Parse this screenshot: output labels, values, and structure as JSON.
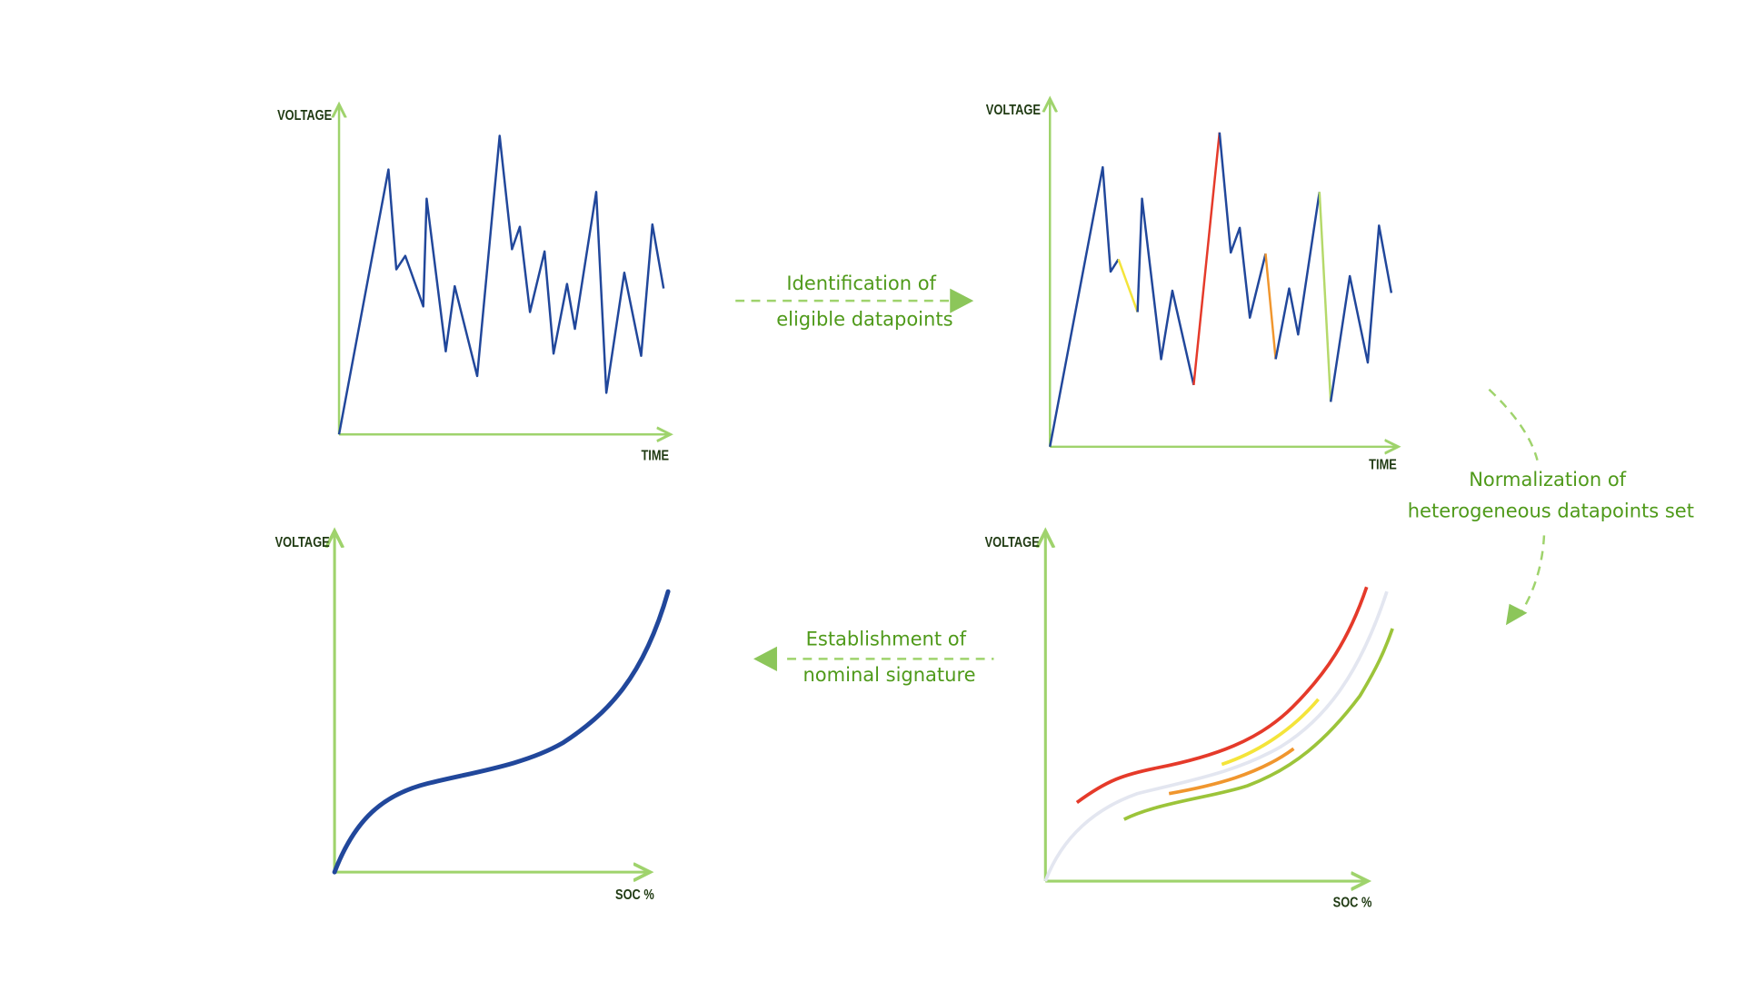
{
  "diagram": {
    "panels": [
      {
        "id": "raw-signal",
        "y_label": "VOLTAGE",
        "x_label": "TIME"
      },
      {
        "id": "eligible-datapoints",
        "y_label": "VOLTAGE",
        "x_label": "TIME"
      },
      {
        "id": "normalized-set",
        "y_label": "VOLTAGE",
        "x_label": "SOC %"
      },
      {
        "id": "nominal-signature",
        "y_label": "VOLTAGE",
        "x_label": "SOC %"
      }
    ],
    "steps": [
      {
        "line1": "Identification of",
        "line2": "eligible datapoints"
      },
      {
        "line1": "Normalization of",
        "line2": "heterogeneous datapoints set"
      },
      {
        "line1": "Establishment of",
        "line2": "nominal signature"
      }
    ],
    "colors": {
      "signal": "#21479b",
      "axis": "#9fd36c",
      "caption": "#4f9a1a",
      "red": "#e53a2a",
      "yellow": "#f4e43a",
      "orange": "#f0962e",
      "green": "#9cc43a",
      "grey": "#e3e6f0"
    }
  }
}
